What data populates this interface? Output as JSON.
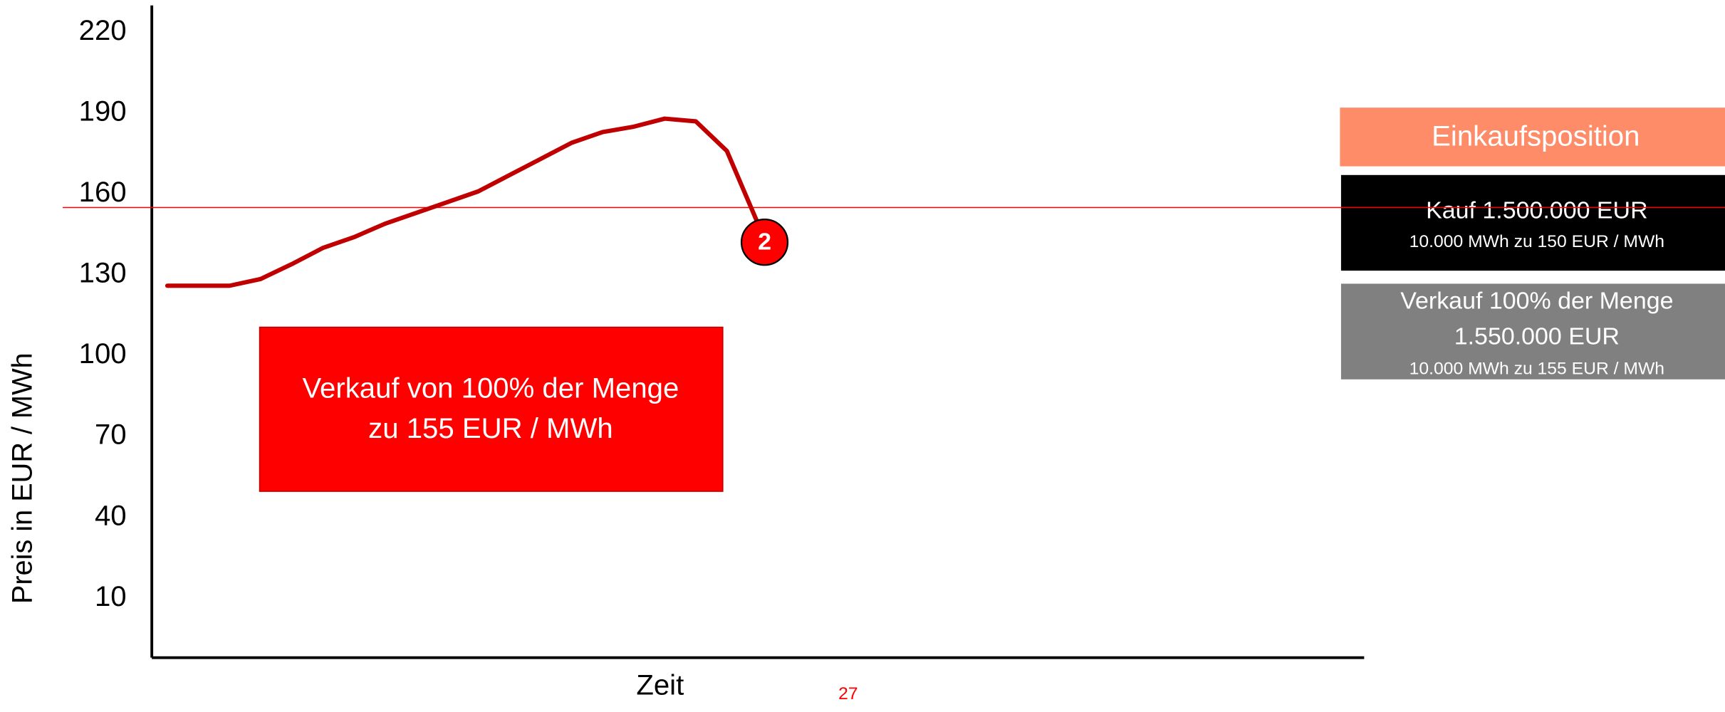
{
  "chart_data": {
    "type": "line",
    "y_label": "Preis in EUR / MWh",
    "x_label": "Zeit",
    "categories": [
      null,
      null,
      null,
      null,
      null,
      null,
      null,
      null,
      null,
      null,
      null,
      null,
      null,
      null,
      null,
      null,
      null,
      null,
      null,
      null,
      null,
      null,
      null,
      null,
      null,
      null,
      null,
      null,
      null,
      null,
      null,
      null,
      null,
      null,
      null,
      null,
      null,
      null,
      null
    ],
    "values": [
      126,
      126,
      126,
      128.5,
      134,
      140,
      144,
      149,
      153,
      157,
      161,
      167,
      173,
      179,
      183,
      185,
      188,
      187,
      176,
      149,
      null,
      null,
      null,
      null,
      null,
      null,
      null,
      null,
      null,
      null,
      null,
      null,
      null,
      null,
      null,
      null,
      null,
      null,
      null
    ],
    "color": "#c00000",
    "ylim": [
      -12,
      230
    ],
    "yticks": [
      10,
      40,
      70,
      100,
      130,
      160,
      190,
      220
    ],
    "reference_line": {
      "value": 155,
      "color": "#ff0000"
    },
    "marker_label": "2",
    "annotation": [
      "Verkauf von 100% der Menge",
      "zu 155 EUR / MWh"
    ]
  },
  "panel": {
    "title": "Einkaufsposition",
    "buy": [
      "Kauf 1.500.000 EUR",
      "10.000 MWh zu 150 EUR / MWh"
    ],
    "sell": [
      "Verkauf 100% der Menge",
      "1.550.000 EUR",
      "10.000 MWh zu 155 EUR / MWh"
    ]
  },
  "page_number": "27"
}
